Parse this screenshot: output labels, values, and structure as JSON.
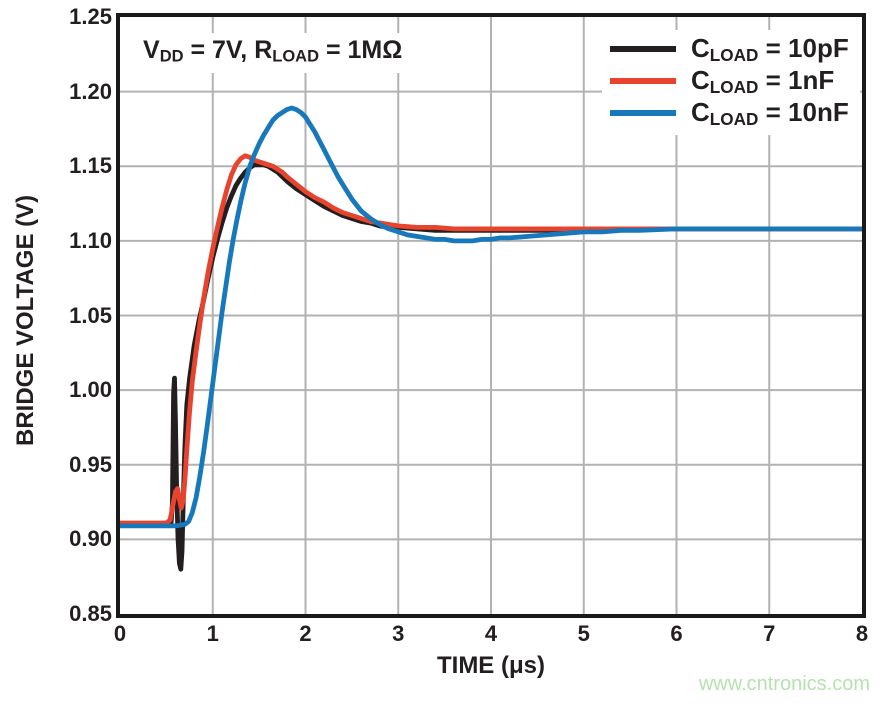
{
  "annotation": {
    "text": "VDD = 7V, RLOAD = 1MΩ",
    "parts": [
      {
        "text": "V",
        "sub": false
      },
      {
        "text": "DD",
        "sub": true
      },
      {
        "text": " = 7V, R",
        "sub": false
      },
      {
        "text": "LOAD",
        "sub": true
      },
      {
        "text": " = 1MΩ",
        "sub": false
      }
    ]
  },
  "legend": {
    "position": "top-right",
    "items": [
      {
        "name": "CLOAD = 10pF",
        "color": "#231f20",
        "parts": [
          {
            "text": "C",
            "sub": false
          },
          {
            "text": "LOAD",
            "sub": true
          },
          {
            "text": " = 10pF",
            "sub": false
          }
        ]
      },
      {
        "name": "CLOAD = 1nF",
        "color": "#e8432c",
        "parts": [
          {
            "text": "C",
            "sub": false
          },
          {
            "text": "LOAD",
            "sub": true
          },
          {
            "text": " = 1nF",
            "sub": false
          }
        ]
      },
      {
        "name": "CLOAD = 10nF",
        "color": "#1779bc",
        "parts": [
          {
            "text": "C",
            "sub": false
          },
          {
            "text": "LOAD",
            "sub": true
          },
          {
            "text": " = 10nF",
            "sub": false
          }
        ]
      }
    ]
  },
  "watermark": {
    "text": "www.cntronics.com",
    "color": "#b5e2af"
  },
  "chart_data": {
    "type": "line",
    "title": "",
    "xlabel": "TIME (μs)",
    "ylabel": "BRIDGE VOLTAGE (V)",
    "xlim": [
      0,
      8
    ],
    "ylim": [
      0.85,
      1.25
    ],
    "x_ticks": [
      0,
      1,
      2,
      3,
      4,
      5,
      6,
      7,
      8
    ],
    "y_ticks": [
      1.25,
      1.2,
      1.15,
      1.1,
      1.05,
      1.0,
      0.95,
      0.9,
      0.85
    ],
    "grid": true,
    "grid_color": "#b2b2b2",
    "axis_color": "#1a1a1a",
    "legend_position": "top-right",
    "annotation": "VDD = 7V, RLOAD = 1MΩ",
    "series": [
      {
        "name": "CLOAD = 10pF",
        "color": "#231f20",
        "points": [
          [
            0,
            0.91
          ],
          [
            0.3,
            0.91
          ],
          [
            0.5,
            0.91
          ],
          [
            0.55,
            0.91
          ],
          [
            0.565,
            0.924
          ],
          [
            0.578,
            0.998
          ],
          [
            0.588,
            1.008
          ],
          [
            0.598,
            0.978
          ],
          [
            0.61,
            0.935
          ],
          [
            0.625,
            0.901
          ],
          [
            0.64,
            0.884
          ],
          [
            0.655,
            0.88
          ],
          [
            0.668,
            0.892
          ],
          [
            0.68,
            0.922
          ],
          [
            0.7,
            0.962
          ],
          [
            0.72,
            0.99
          ],
          [
            0.75,
            1.008
          ],
          [
            0.8,
            1.03
          ],
          [
            0.85,
            1.046
          ],
          [
            0.9,
            1.06
          ],
          [
            0.95,
            1.075
          ],
          [
            1,
            1.089
          ],
          [
            1.05,
            1.101
          ],
          [
            1.1,
            1.112
          ],
          [
            1.15,
            1.122
          ],
          [
            1.2,
            1.13
          ],
          [
            1.25,
            1.137
          ],
          [
            1.3,
            1.142
          ],
          [
            1.35,
            1.146
          ],
          [
            1.4,
            1.149
          ],
          [
            1.45,
            1.151
          ],
          [
            1.5,
            1.151
          ],
          [
            1.55,
            1.151
          ],
          [
            1.6,
            1.15
          ],
          [
            1.65,
            1.148
          ],
          [
            1.7,
            1.146
          ],
          [
            1.75,
            1.143
          ],
          [
            1.8,
            1.14
          ],
          [
            1.9,
            1.135
          ],
          [
            2,
            1.131
          ],
          [
            2.1,
            1.127
          ],
          [
            2.2,
            1.123
          ],
          [
            2.3,
            1.12
          ],
          [
            2.4,
            1.117
          ],
          [
            2.5,
            1.115
          ],
          [
            2.6,
            1.113
          ],
          [
            2.7,
            1.112
          ],
          [
            2.8,
            1.11
          ],
          [
            2.9,
            1.109
          ],
          [
            3,
            1.109
          ],
          [
            3.2,
            1.108
          ],
          [
            3.4,
            1.107
          ],
          [
            3.6,
            1.107
          ],
          [
            3.8,
            1.107
          ],
          [
            4,
            1.107
          ],
          [
            4.5,
            1.107
          ],
          [
            5,
            1.107
          ],
          [
            5.5,
            1.108
          ],
          [
            6,
            1.108
          ],
          [
            6.5,
            1.108
          ],
          [
            7,
            1.108
          ],
          [
            7.5,
            1.108
          ],
          [
            8,
            1.108
          ]
        ]
      },
      {
        "name": "CLOAD = 1nF",
        "color": "#e8432c",
        "points": [
          [
            0,
            0.911
          ],
          [
            0.3,
            0.911
          ],
          [
            0.5,
            0.911
          ],
          [
            0.54,
            0.913
          ],
          [
            0.57,
            0.923
          ],
          [
            0.6,
            0.932
          ],
          [
            0.62,
            0.934
          ],
          [
            0.64,
            0.927
          ],
          [
            0.66,
            0.921
          ],
          [
            0.68,
            0.926
          ],
          [
            0.7,
            0.94
          ],
          [
            0.72,
            0.96
          ],
          [
            0.75,
            0.986
          ],
          [
            0.78,
            1.006
          ],
          [
            0.82,
            1.026
          ],
          [
            0.86,
            1.044
          ],
          [
            0.9,
            1.061
          ],
          [
            0.95,
            1.079
          ],
          [
            1,
            1.095
          ],
          [
            1.05,
            1.109
          ],
          [
            1.1,
            1.122
          ],
          [
            1.15,
            1.134
          ],
          [
            1.2,
            1.144
          ],
          [
            1.25,
            1.151
          ],
          [
            1.3,
            1.155
          ],
          [
            1.35,
            1.157
          ],
          [
            1.4,
            1.156
          ],
          [
            1.45,
            1.154
          ],
          [
            1.5,
            1.153
          ],
          [
            1.55,
            1.152
          ],
          [
            1.6,
            1.151
          ],
          [
            1.65,
            1.15
          ],
          [
            1.7,
            1.148
          ],
          [
            1.75,
            1.146
          ],
          [
            1.8,
            1.143
          ],
          [
            1.9,
            1.138
          ],
          [
            2,
            1.133
          ],
          [
            2.1,
            1.129
          ],
          [
            2.2,
            1.126
          ],
          [
            2.3,
            1.122
          ],
          [
            2.4,
            1.119
          ],
          [
            2.5,
            1.117
          ],
          [
            2.6,
            1.115
          ],
          [
            2.7,
            1.113
          ],
          [
            2.8,
            1.112
          ],
          [
            2.9,
            1.111
          ],
          [
            3,
            1.11
          ],
          [
            3.2,
            1.109
          ],
          [
            3.4,
            1.109
          ],
          [
            3.6,
            1.108
          ],
          [
            3.8,
            1.108
          ],
          [
            4,
            1.108
          ],
          [
            4.5,
            1.108
          ],
          [
            5,
            1.108
          ],
          [
            5.5,
            1.108
          ],
          [
            6,
            1.108
          ],
          [
            6.5,
            1.108
          ],
          [
            7,
            1.108
          ],
          [
            7.5,
            1.108
          ],
          [
            8,
            1.108
          ]
        ]
      },
      {
        "name": "CLOAD = 10nF",
        "color": "#1779bc",
        "points": [
          [
            0,
            0.909
          ],
          [
            0.3,
            0.909
          ],
          [
            0.6,
            0.909
          ],
          [
            0.7,
            0.91
          ],
          [
            0.74,
            0.912
          ],
          [
            0.78,
            0.918
          ],
          [
            0.82,
            0.928
          ],
          [
            0.86,
            0.942
          ],
          [
            0.9,
            0.958
          ],
          [
            0.94,
            0.976
          ],
          [
            0.98,
            0.995
          ],
          [
            1.02,
            1.014
          ],
          [
            1.06,
            1.033
          ],
          [
            1.1,
            1.052
          ],
          [
            1.14,
            1.069
          ],
          [
            1.18,
            1.086
          ],
          [
            1.22,
            1.101
          ],
          [
            1.26,
            1.114
          ],
          [
            1.3,
            1.126
          ],
          [
            1.35,
            1.139
          ],
          [
            1.4,
            1.15
          ],
          [
            1.45,
            1.158
          ],
          [
            1.5,
            1.165
          ],
          [
            1.55,
            1.171
          ],
          [
            1.6,
            1.176
          ],
          [
            1.65,
            1.181
          ],
          [
            1.7,
            1.184
          ],
          [
            1.75,
            1.186
          ],
          [
            1.8,
            1.188
          ],
          [
            1.85,
            1.189
          ],
          [
            1.9,
            1.188
          ],
          [
            1.95,
            1.186
          ],
          [
            2,
            1.183
          ],
          [
            2.05,
            1.178
          ],
          [
            2.1,
            1.173
          ],
          [
            2.15,
            1.167
          ],
          [
            2.2,
            1.161
          ],
          [
            2.25,
            1.155
          ],
          [
            2.3,
            1.149
          ],
          [
            2.35,
            1.143
          ],
          [
            2.4,
            1.138
          ],
          [
            2.5,
            1.128
          ],
          [
            2.6,
            1.12
          ],
          [
            2.7,
            1.115
          ],
          [
            2.8,
            1.111
          ],
          [
            2.9,
            1.108
          ],
          [
            3,
            1.106
          ],
          [
            3.1,
            1.104
          ],
          [
            3.2,
            1.103
          ],
          [
            3.3,
            1.102
          ],
          [
            3.4,
            1.101
          ],
          [
            3.5,
            1.101
          ],
          [
            3.6,
            1.1
          ],
          [
            3.7,
            1.1
          ],
          [
            3.8,
            1.1
          ],
          [
            3.9,
            1.101
          ],
          [
            4,
            1.101
          ],
          [
            4.1,
            1.102
          ],
          [
            4.2,
            1.102
          ],
          [
            4.4,
            1.103
          ],
          [
            4.6,
            1.104
          ],
          [
            4.8,
            1.105
          ],
          [
            5,
            1.106
          ],
          [
            5.2,
            1.106
          ],
          [
            5.4,
            1.107
          ],
          [
            5.6,
            1.107
          ],
          [
            6,
            1.108
          ],
          [
            6.5,
            1.108
          ],
          [
            7,
            1.108
          ],
          [
            7.5,
            1.108
          ],
          [
            8,
            1.108
          ]
        ]
      }
    ]
  }
}
